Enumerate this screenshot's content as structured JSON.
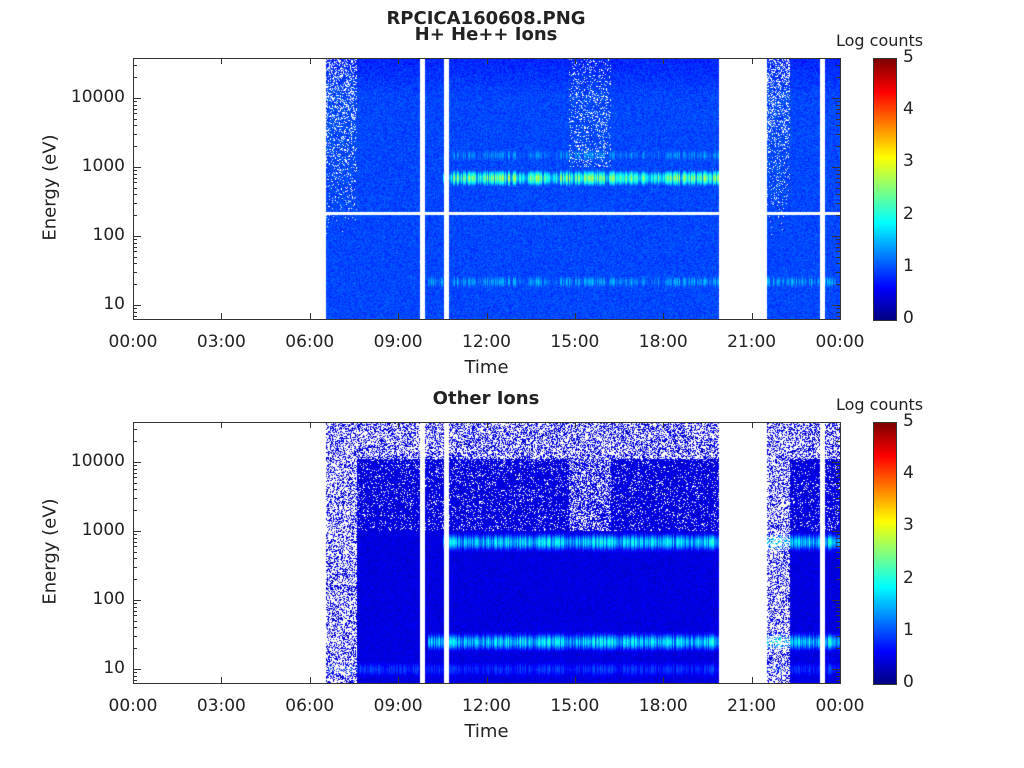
{
  "chart_data": [
    {
      "type": "heatmap",
      "figure_title": "RPCICA160608.PNG",
      "title": "H+ He++ Ions",
      "xlabel": "Time",
      "ylabel": "Energy (eV)",
      "x_ticks": [
        "00:00",
        "03:00",
        "06:00",
        "09:00",
        "12:00",
        "15:00",
        "18:00",
        "21:00",
        "00:00"
      ],
      "x_range_hours": [
        0,
        24
      ],
      "y_scale": "log",
      "y_ticks": [
        "10",
        "100",
        "1000",
        "10000"
      ],
      "y_tick_values": [
        10,
        100,
        1000,
        10000
      ],
      "y_range": [
        6.3,
        38000
      ],
      "colorbar": {
        "label": "Log counts",
        "range": [
          0,
          5
        ],
        "ticks": [
          "0",
          "1",
          "2",
          "3",
          "4",
          "5"
        ],
        "colormap": "jet"
      },
      "data_start_hour": 6.55,
      "vertical_gaps_hours": [
        9.81,
        10.63,
        23.39
      ],
      "data_gap_hours": [
        19.89,
        21.52
      ],
      "horizontal_gap_energy_eV": 215,
      "background_log_counts": 0.8,
      "bands": [
        {
          "energy_eV": 700,
          "log_counts": 2.3,
          "hours": [
            10.5,
            19.9
          ]
        },
        {
          "energy_eV": 1500,
          "log_counts": 1.3,
          "hours": [
            10.5,
            19.9
          ]
        },
        {
          "energy_eV": 22,
          "log_counts": 1.4,
          "hours": [
            10.0,
            24
          ]
        }
      ]
    },
    {
      "type": "heatmap",
      "title": "Other Ions",
      "xlabel": "Time",
      "ylabel": "Energy (eV)",
      "x_ticks": [
        "00:00",
        "03:00",
        "06:00",
        "09:00",
        "12:00",
        "15:00",
        "18:00",
        "21:00",
        "00:00"
      ],
      "x_range_hours": [
        0,
        24
      ],
      "y_scale": "log",
      "y_ticks": [
        "10",
        "100",
        "1000",
        "10000"
      ],
      "y_tick_values": [
        10,
        100,
        1000,
        10000
      ],
      "y_range": [
        6.3,
        38000
      ],
      "colorbar": {
        "label": "Log counts",
        "range": [
          0,
          5
        ],
        "ticks": [
          "0",
          "1",
          "2",
          "3",
          "4",
          "5"
        ],
        "colormap": "jet"
      },
      "data_start_hour": 6.55,
      "vertical_gaps_hours": [
        9.81,
        10.63,
        23.39
      ],
      "data_gap_hours": [
        19.89,
        21.52
      ],
      "background_log_counts": 0.3,
      "bands": [
        {
          "energy_eV": 700,
          "log_counts": 1.8,
          "hours": [
            10.5,
            24
          ]
        },
        {
          "energy_eV": 25,
          "log_counts": 1.8,
          "hours": [
            10.0,
            24
          ]
        },
        {
          "energy_eV": 10,
          "log_counts": 1.0,
          "hours": [
            6.55,
            24
          ]
        }
      ]
    }
  ]
}
